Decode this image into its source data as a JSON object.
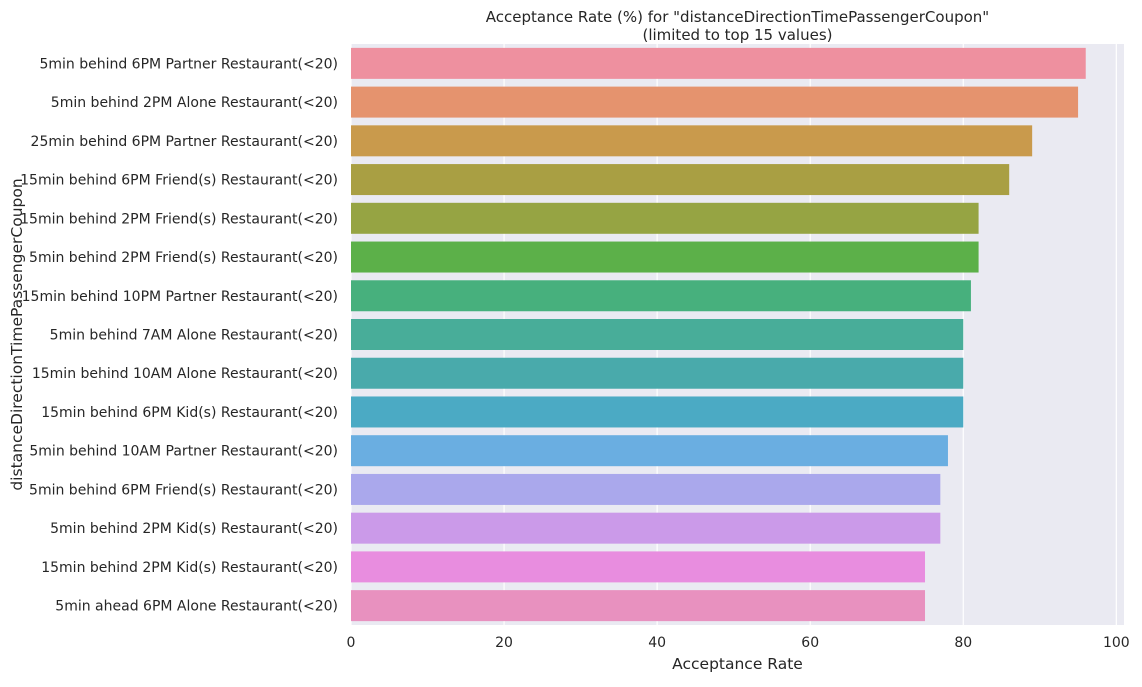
{
  "chart_data": {
    "type": "bar",
    "orientation": "horizontal",
    "title": "Acceptance Rate (%) for \"distanceDirectionTimePassengerCoupon\"",
    "subtitle": "(limited to top 15 values)",
    "xlabel": "Acceptance Rate",
    "ylabel": "distanceDirectionTimePassengerCoupon",
    "xlim": [
      0,
      101
    ],
    "xticks": [
      0,
      20,
      40,
      60,
      80,
      100
    ],
    "grid": true,
    "background": "#eaeaf2",
    "categories": [
      "5min behind 6PM Partner Restaurant(<20)",
      "5min behind 2PM Alone Restaurant(<20)",
      "25min behind 6PM Partner Restaurant(<20)",
      "15min behind 6PM Friend(s) Restaurant(<20)",
      "15min behind 2PM Friend(s) Restaurant(<20)",
      "5min behind 2PM Friend(s) Restaurant(<20)",
      "15min behind 10PM Partner Restaurant(<20)",
      "5min behind 7AM Alone Restaurant(<20)",
      "15min behind 10AM Alone Restaurant(<20)",
      "15min behind 6PM Kid(s) Restaurant(<20)",
      "5min behind 10AM Partner Restaurant(<20)",
      "5min behind 6PM Friend(s) Restaurant(<20)",
      "5min behind 2PM Kid(s) Restaurant(<20)",
      "15min behind 2PM Kid(s) Restaurant(<20)",
      "5min ahead 6PM Alone Restaurant(<20)"
    ],
    "values": [
      96,
      95,
      89,
      86,
      82,
      82,
      81,
      80,
      80,
      80,
      78,
      77,
      77,
      75,
      75
    ],
    "colors": [
      "#ee909f",
      "#e5936e",
      "#c99a4c",
      "#a99f43",
      "#96a443",
      "#5cb049",
      "#47b07d",
      "#48ad99",
      "#49aaab",
      "#4baac4",
      "#6aaee1",
      "#aaa8ec",
      "#cb9ae9",
      "#e88ddf",
      "#e891bf"
    ]
  }
}
